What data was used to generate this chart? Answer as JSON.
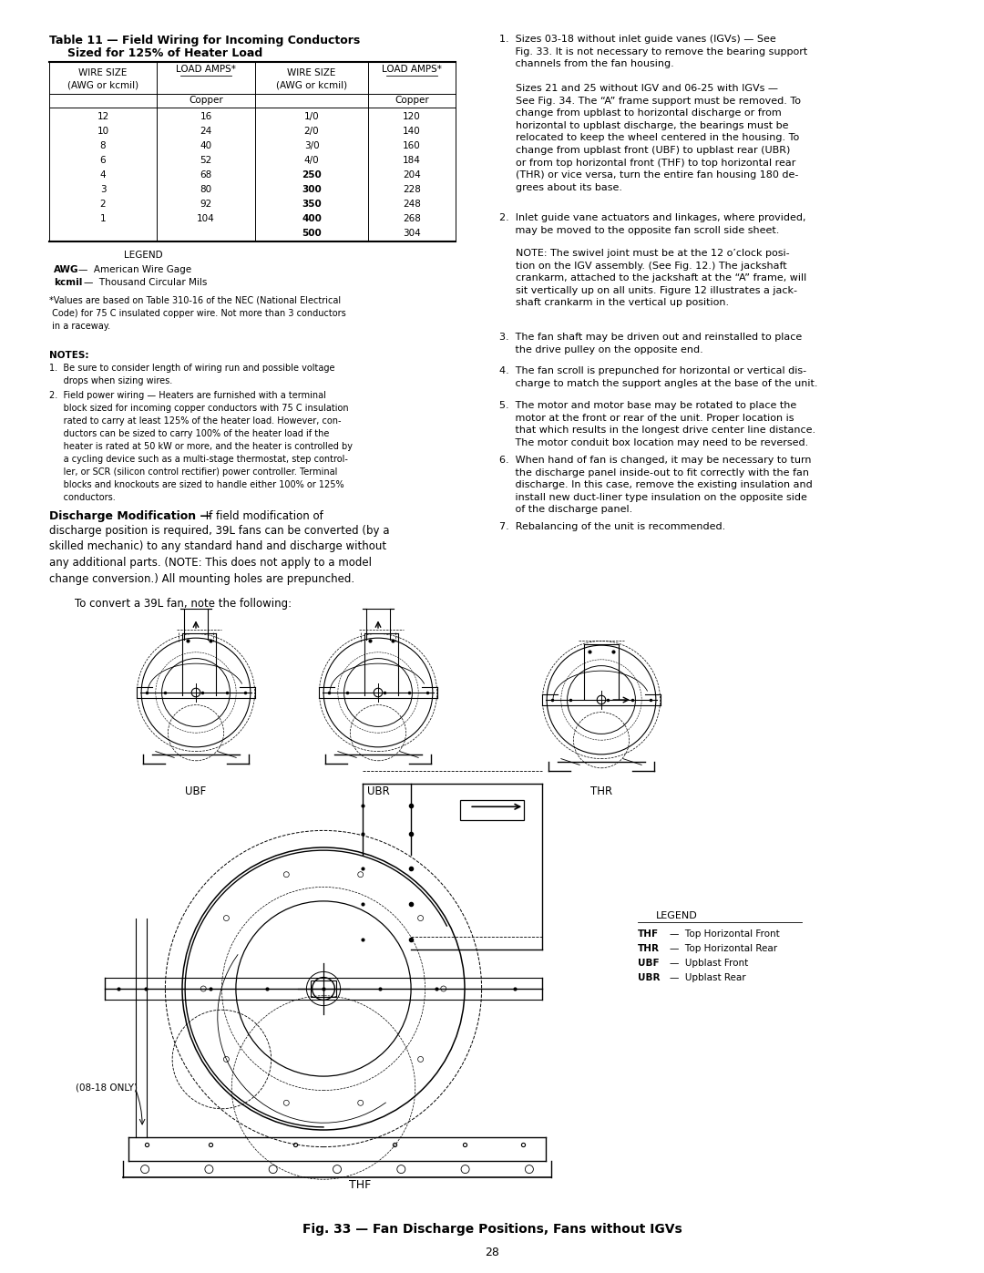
{
  "page_width": 10.8,
  "page_height": 13.97,
  "background_color": "#ffffff",
  "title_table": "Table 11 — Field Wiring for Incoming Conductors\nSized for 125% of Heater Load",
  "table_col1": [
    "12",
    "10",
    "8",
    "6",
    "4",
    "3",
    "2",
    "1"
  ],
  "table_col2": [
    "16",
    "24",
    "40",
    "52",
    "68",
    "80",
    "92",
    "104"
  ],
  "table_col3": [
    "1/0",
    "2/0",
    "3/0",
    "4/0",
    "250",
    "300",
    "350",
    "400",
    "500"
  ],
  "table_col4": [
    "120",
    "140",
    "160",
    "184",
    "204",
    "228",
    "248",
    "268",
    "304"
  ],
  "label_ubf": "UBF",
  "label_ubr": "UBR",
  "label_thr": "THR",
  "label_thf": "THF",
  "label_08_18": "(08-18 ONLY)",
  "caption": "Fig. 33 — Fan Discharge Positions, Fans without IGVs",
  "page_number": "28"
}
